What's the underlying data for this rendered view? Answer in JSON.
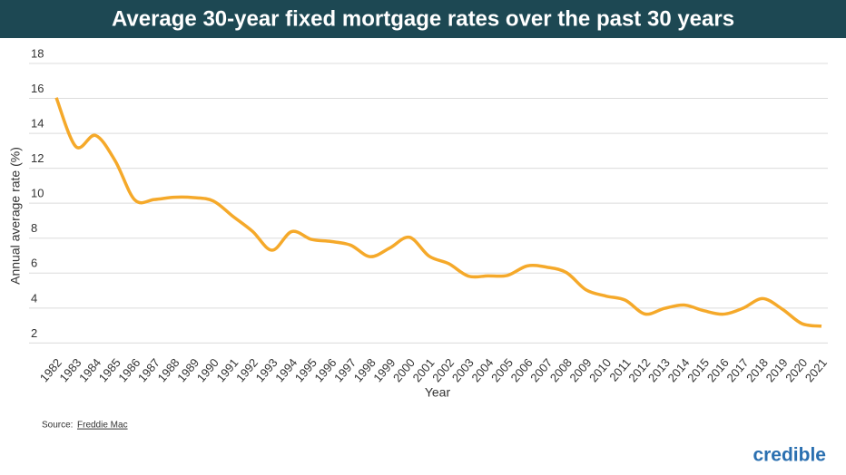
{
  "chart_data": {
    "type": "line",
    "title": "Average 30-year fixed mortgage rates over the past 30 years",
    "x_label": "Year",
    "y_label": "Annual average rate (%)",
    "categories": [
      "1982",
      "1983",
      "1984",
      "1985",
      "1986",
      "1987",
      "1988",
      "1989",
      "1990",
      "1991",
      "1992",
      "1993",
      "1994",
      "1995",
      "1996",
      "1997",
      "1998",
      "1999",
      "2000",
      "2001",
      "2002",
      "2003",
      "2004",
      "2005",
      "2006",
      "2007",
      "2008",
      "2009",
      "2010",
      "2011",
      "2012",
      "2013",
      "2014",
      "2015",
      "2016",
      "2017",
      "2018",
      "2019",
      "2020",
      "2021"
    ],
    "values": [
      16.04,
      13.24,
      13.88,
      12.43,
      10.19,
      10.21,
      10.34,
      10.32,
      10.13,
      9.25,
      8.39,
      7.31,
      8.38,
      7.93,
      7.81,
      7.6,
      6.94,
      7.44,
      8.05,
      6.97,
      6.54,
      5.83,
      5.84,
      5.87,
      6.41,
      6.34,
      6.03,
      5.04,
      4.69,
      4.45,
      3.66,
      3.98,
      4.17,
      3.85,
      3.65,
      3.99,
      4.54,
      3.94,
      3.11,
      2.96
    ],
    "color": "#f5a92a",
    "ylim": [
      1.5,
      18
    ],
    "yticks": [
      2,
      4,
      6,
      8,
      10,
      12,
      14,
      16,
      18
    ],
    "grid": true,
    "source_label": "Source:",
    "source_link": "Freddie Mac",
    "logo": "credible"
  }
}
